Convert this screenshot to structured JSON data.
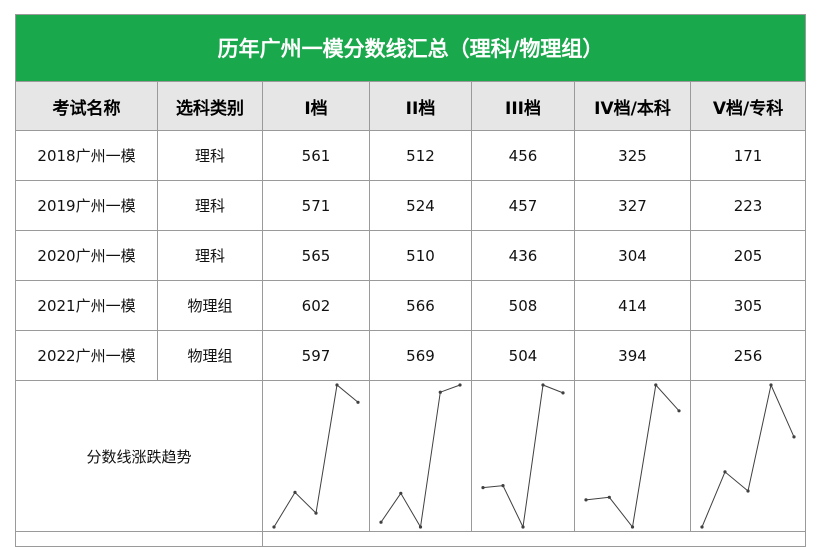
{
  "title": "历年广州一模分数线汇总（理科/物理组）",
  "headers": [
    "考试名称",
    "选科类别",
    "I档",
    "II档",
    "III档",
    "IV档/本科",
    "V档/专科"
  ],
  "rows": [
    {
      "exam": "2018广州一模",
      "subject": "理科",
      "scores": [
        "561",
        "512",
        "456",
        "325",
        "171"
      ]
    },
    {
      "exam": "2019广州一模",
      "subject": "理科",
      "scores": [
        "571",
        "524",
        "457",
        "327",
        "223"
      ]
    },
    {
      "exam": "2020广州一模",
      "subject": "理科",
      "scores": [
        "565",
        "510",
        "436",
        "304",
        "205"
      ]
    },
    {
      "exam": "2021广州一模",
      "subject": "物理组",
      "scores": [
        "602",
        "566",
        "508",
        "414",
        "305"
      ]
    },
    {
      "exam": "2022广州一模",
      "subject": "物理组",
      "scores": [
        "597",
        "569",
        "504",
        "394",
        "256"
      ]
    }
  ],
  "trend_label": "分数线涨跌趋势",
  "colors": {
    "title_bg": "#1aa84c",
    "header_bg": "#e6e6e6",
    "grid": "#9a9a9a",
    "sparkline": "#404040"
  },
  "chart_data": {
    "type": "line",
    "categories": [
      "2018广州一模",
      "2019广州一模",
      "2020广州一模",
      "2021广州一模",
      "2022广州一模"
    ],
    "series": [
      {
        "name": "I档",
        "values": [
          561,
          571,
          565,
          602,
          597
        ]
      },
      {
        "name": "II档",
        "values": [
          512,
          524,
          510,
          566,
          569
        ]
      },
      {
        "name": "III档",
        "values": [
          456,
          457,
          436,
          508,
          504
        ]
      },
      {
        "name": "IV档/本科",
        "values": [
          325,
          327,
          304,
          414,
          394
        ]
      },
      {
        "name": "V档/专科",
        "values": [
          171,
          223,
          205,
          305,
          256
        ]
      }
    ]
  }
}
